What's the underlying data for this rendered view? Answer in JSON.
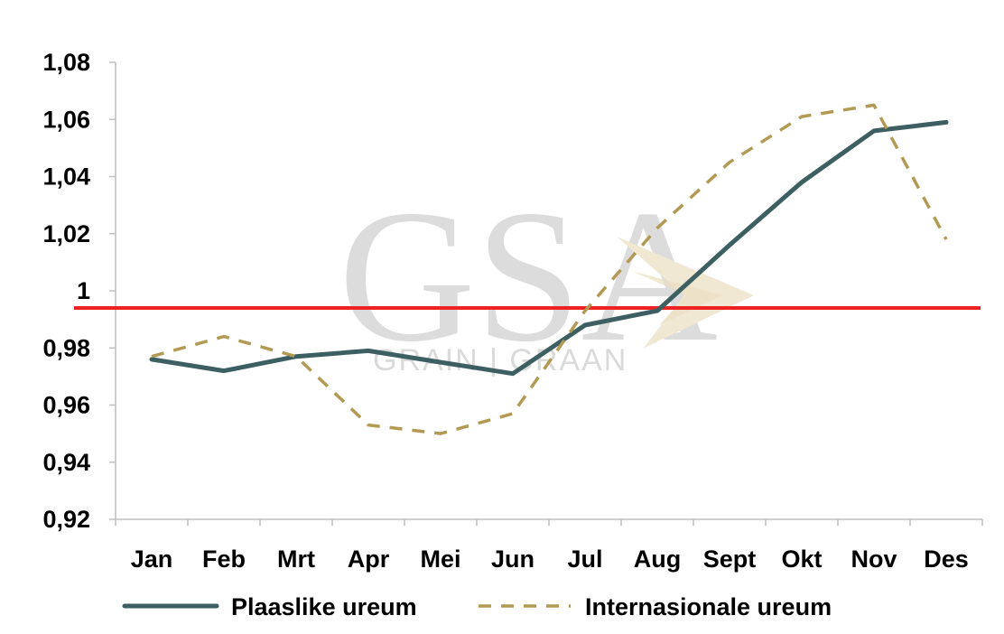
{
  "chart_data": {
    "type": "line",
    "categories": [
      "Jan",
      "Feb",
      "Mrt",
      "Apr",
      "Mei",
      "Jun",
      "Jul",
      "Aug",
      "Sept",
      "Okt",
      "Nov",
      "Des"
    ],
    "series": [
      {
        "name": "Plaaslike ureum",
        "color": "#3d5f62",
        "style": "solid",
        "values": [
          0.976,
          0.972,
          0.977,
          0.979,
          0.975,
          0.971,
          0.988,
          0.993,
          1.016,
          1.038,
          1.056,
          1.059
        ]
      },
      {
        "name": "Internasionale ureum",
        "color": "#b29a54",
        "style": "dashed",
        "values": [
          0.977,
          0.984,
          0.977,
          0.953,
          0.95,
          0.957,
          0.993,
          1.022,
          1.045,
          1.061,
          1.065,
          1.018
        ]
      }
    ],
    "reference_line": {
      "value": 0.994,
      "color": "#ee2222"
    },
    "y_ticks": [
      0.92,
      0.94,
      0.96,
      0.98,
      1,
      1.02,
      1.04,
      1.06,
      1.08
    ],
    "y_tick_labels": [
      "0,92",
      "0,94",
      "0,96",
      "0,98",
      "1",
      "1,02",
      "1,04",
      "1,06",
      "1,08"
    ],
    "ylim": [
      0.92,
      1.08
    ],
    "grid": false,
    "legend": "bottom",
    "title": "",
    "xlabel": "",
    "ylabel": ""
  },
  "watermark": {
    "logo_text": "GSA",
    "tagline": "GRAIN | GRAAN"
  }
}
